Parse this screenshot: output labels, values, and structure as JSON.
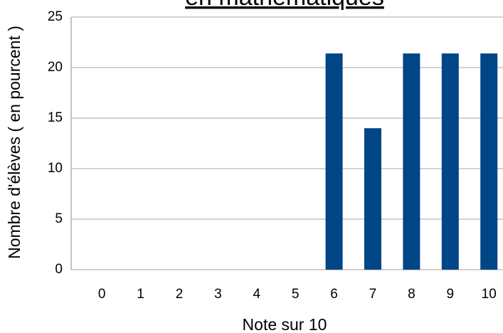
{
  "chart_data": {
    "type": "bar",
    "title": "en mathématiques",
    "x_label": "Note sur 10",
    "y_label": "Nombre d'élèves ( en pourcent )",
    "categories": [
      "0",
      "1",
      "2",
      "3",
      "4",
      "5",
      "6",
      "7",
      "8",
      "9",
      "10"
    ],
    "values": [
      0,
      0,
      0,
      0,
      0,
      0,
      21.4,
      14,
      21.4,
      21.4,
      21.4
    ],
    "color": "#004586",
    "ylim": [
      0,
      25
    ],
    "yticks": [
      0,
      5,
      10,
      15,
      20,
      25
    ],
    "grid": true
  }
}
